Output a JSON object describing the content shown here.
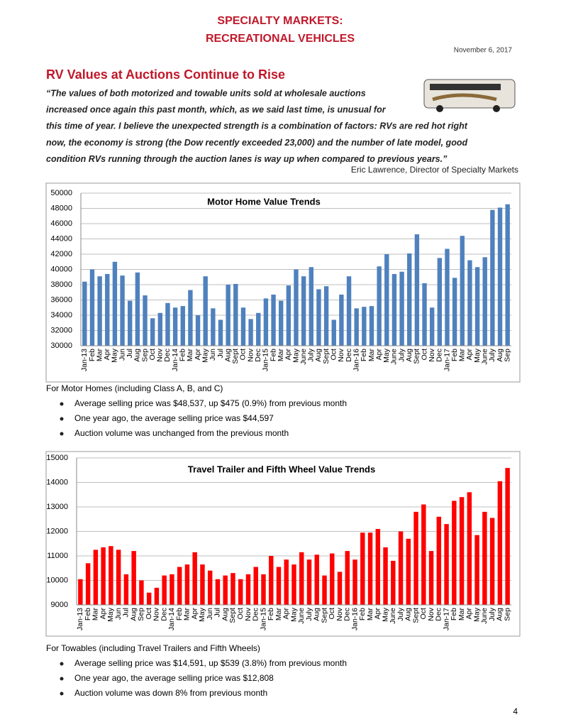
{
  "header": {
    "title_lines": [
      "SPECIALTY MARKETS:",
      "RECREATIONAL VEHICLES"
    ],
    "date": "November 6, 2017"
  },
  "article": {
    "heading": "RV Values at Auctions Continue to Rise",
    "quote_lines": [
      "“The values of both motorized and towable units sold at wholesale auctions",
      "increased once again this past month, which, as we said last time, is unusual for",
      "this time of year.  I believe the unexpected strength is a combination of factors: RVs are red hot right",
      "now, the economy is strong (the Dow recently exceeded 23,000) and the number of late model, good",
      "condition RVs running through the auction lanes is way up when compared to previous years.”"
    ],
    "attribution": "Eric Lawrence, Director of Specialty Markets"
  },
  "chart_data": [
    {
      "type": "bar",
      "title": "Motor Home Value Trends",
      "color": "#4f81bd",
      "grid": true,
      "categories": [
        "Jan-13",
        "Feb",
        "Mar",
        "Apr",
        "May",
        "Jun",
        "Jul",
        "Aug",
        "Sep",
        "Oct",
        "Nov",
        "Dec",
        "Jan-14",
        "Feb",
        "Mar",
        "Apr",
        "May",
        "Jun",
        "Jul",
        "Aug",
        "Sept",
        "Oct",
        "Nov",
        "Dec",
        "Jan-15",
        "Feb",
        "Mar",
        "Apr",
        "May",
        "June",
        "July",
        "Aug",
        "Sept",
        "Oct",
        "Nov",
        "Dec",
        "Jan-16",
        "Feb",
        "Mar",
        "Apr",
        "May",
        "June",
        "July",
        "Aug",
        "Sept",
        "Oct",
        "Nov",
        "Dec",
        "Jan-17",
        "Feb",
        "Mar",
        "Apr",
        "May",
        "June",
        "July",
        "Aug",
        "Sep"
      ],
      "values": [
        38400,
        40000,
        39100,
        39400,
        41000,
        39200,
        35900,
        39600,
        36600,
        33600,
        34300,
        35600,
        35000,
        35200,
        37300,
        34000,
        39100,
        34900,
        33400,
        38000,
        38100,
        35000,
        33500,
        34300,
        36200,
        36700,
        35900,
        37900,
        40000,
        39100,
        40300,
        37400,
        37800,
        33400,
        36700,
        39100,
        34900,
        35100,
        35200,
        40400,
        42000,
        39400,
        39700,
        42100,
        44600,
        38200,
        35000,
        41500,
        42700,
        38900,
        44400,
        41200,
        40300,
        41600,
        47800,
        48100,
        48537
      ],
      "ylim": [
        30000,
        50000
      ],
      "yticks": [
        30000,
        32000,
        34000,
        36000,
        38000,
        40000,
        42000,
        44000,
        46000,
        48000,
        50000
      ]
    },
    {
      "type": "bar",
      "title": "Travel Trailer and Fifth Wheel Value Trends",
      "color": "#ff0000",
      "grid": true,
      "categories": [
        "Jan-13",
        "Feb",
        "Mar",
        "Apr",
        "May",
        "Jun",
        "Jul",
        "Aug",
        "Sep",
        "Oct",
        "Nov",
        "Dec",
        "Jan-14",
        "Feb",
        "Mar",
        "Apr",
        "May",
        "Jun",
        "Jul",
        "Aug",
        "Sept",
        "Oct",
        "Nov",
        "Dec",
        "Jan-15",
        "Feb",
        "Mar",
        "Apr",
        "May",
        "June",
        "July",
        "Aug",
        "Sept",
        "Oct",
        "Nov",
        "Dec",
        "Jan-16",
        "Feb",
        "Mar",
        "Apr",
        "May",
        "June",
        "July",
        "Aug",
        "Sept",
        "Oct",
        "Nov",
        "Dec",
        "Jan-17",
        "Feb",
        "Mar",
        "Apr",
        "May",
        "June",
        "July",
        "Aug",
        "Sep"
      ],
      "values": [
        10050,
        10700,
        11250,
        11350,
        11400,
        11250,
        10250,
        11200,
        10000,
        9500,
        9700,
        10200,
        10250,
        10550,
        10650,
        11150,
        10650,
        10400,
        10050,
        10200,
        10300,
        10050,
        10250,
        10550,
        10250,
        11000,
        10550,
        10850,
        10650,
        11150,
        10850,
        11050,
        10200,
        11100,
        10350,
        11200,
        10850,
        11950,
        11950,
        12100,
        11350,
        10800,
        12000,
        11700,
        12800,
        13100,
        11200,
        12600,
        12300,
        13250,
        13400,
        13600,
        11850,
        12800,
        12550,
        14050,
        14591
      ],
      "ylim": [
        9000,
        15000
      ],
      "yticks": [
        9000,
        10000,
        11000,
        12000,
        13000,
        14000,
        15000
      ]
    }
  ],
  "sections": [
    {
      "intro": "For Motor Homes (including Class A, B, and C)",
      "bullets": [
        "Average selling price was $48,537, up $475 (0.9%) from previous month",
        "One year ago, the average selling price was $44,597",
        "Auction volume was unchanged from the previous month"
      ]
    },
    {
      "intro": "For Towables (including Travel Trailers and Fifth Wheels)",
      "bullets": [
        "Average selling price was $14,591, up $539 (3.8%) from previous month",
        "One year ago, the average selling price was $12,808",
        "Auction volume was down 8% from previous month"
      ]
    }
  ],
  "page_number": "4"
}
